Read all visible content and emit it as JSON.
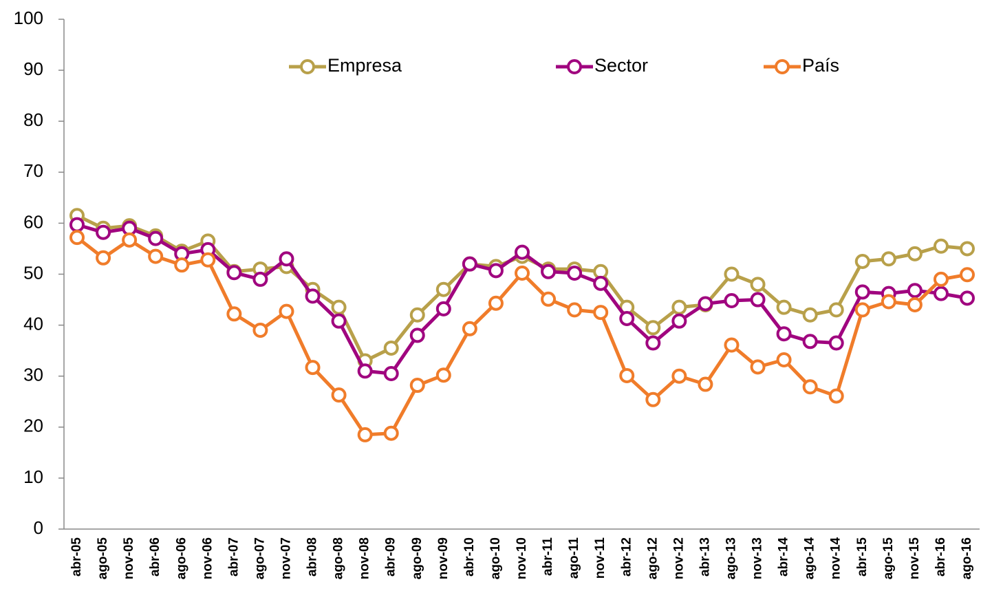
{
  "chart_data": {
    "type": "line",
    "categories": [
      "abr-05",
      "ago-05",
      "nov-05",
      "abr-06",
      "ago-06",
      "nov-06",
      "abr-07",
      "ago-07",
      "nov-07",
      "abr-08",
      "ago-08",
      "nov-08",
      "abr-09",
      "ago-09",
      "nov-09",
      "abr-10",
      "ago-10",
      "nov-10",
      "abr-11",
      "ago-11",
      "nov-11",
      "abr-12",
      "ago-12",
      "nov-12",
      "abr-13",
      "ago-13",
      "nov-13",
      "abr-14",
      "ago-14",
      "nov-14",
      "abr-15",
      "ago-15",
      "nov-15",
      "abr-16",
      "ago-16"
    ],
    "series": [
      {
        "name": "Empresa",
        "color": "#b8a04a",
        "values": [
          61.5,
          59,
          59.5,
          57.5,
          54.5,
          56.5,
          50.5,
          51,
          51.5,
          47,
          43.5,
          33,
          35.5,
          42,
          47,
          52,
          51.5,
          53.5,
          51,
          51,
          50.5,
          43.5,
          39.5,
          43.5,
          44,
          50,
          48,
          43.5,
          42,
          43,
          52.5,
          53,
          54,
          55.5,
          55
        ]
      },
      {
        "name": "Sector",
        "color": "#a0057f",
        "values": [
          59.7,
          58.2,
          59,
          57,
          54,
          54.8,
          50.3,
          49,
          53,
          45.7,
          40.8,
          31,
          30.5,
          38,
          43.2,
          52,
          50.7,
          54.3,
          50.5,
          50.2,
          48.2,
          41.3,
          36.5,
          40.8,
          44.2,
          44.8,
          45,
          38.3,
          36.8,
          36.5,
          46.5,
          46.2,
          46.8,
          46.2,
          45.3
        ]
      },
      {
        "name": "País",
        "color": "#f07c2a",
        "values": [
          57.2,
          53.2,
          56.7,
          53.5,
          51.8,
          52.8,
          42.2,
          39,
          42.7,
          31.7,
          26.3,
          18.5,
          18.8,
          28.2,
          30.2,
          39.3,
          44.3,
          50.2,
          45.1,
          43,
          42.5,
          30.1,
          25.4,
          30,
          28.4,
          36.1,
          31.8,
          33.2,
          27.9,
          26.1,
          43,
          44.6,
          44,
          49,
          49.9
        ]
      }
    ],
    "ylim": [
      0,
      100
    ],
    "yticks": [
      0,
      10,
      20,
      30,
      40,
      50,
      60,
      70,
      80,
      90,
      100
    ],
    "grid": false,
    "legend": "top"
  }
}
